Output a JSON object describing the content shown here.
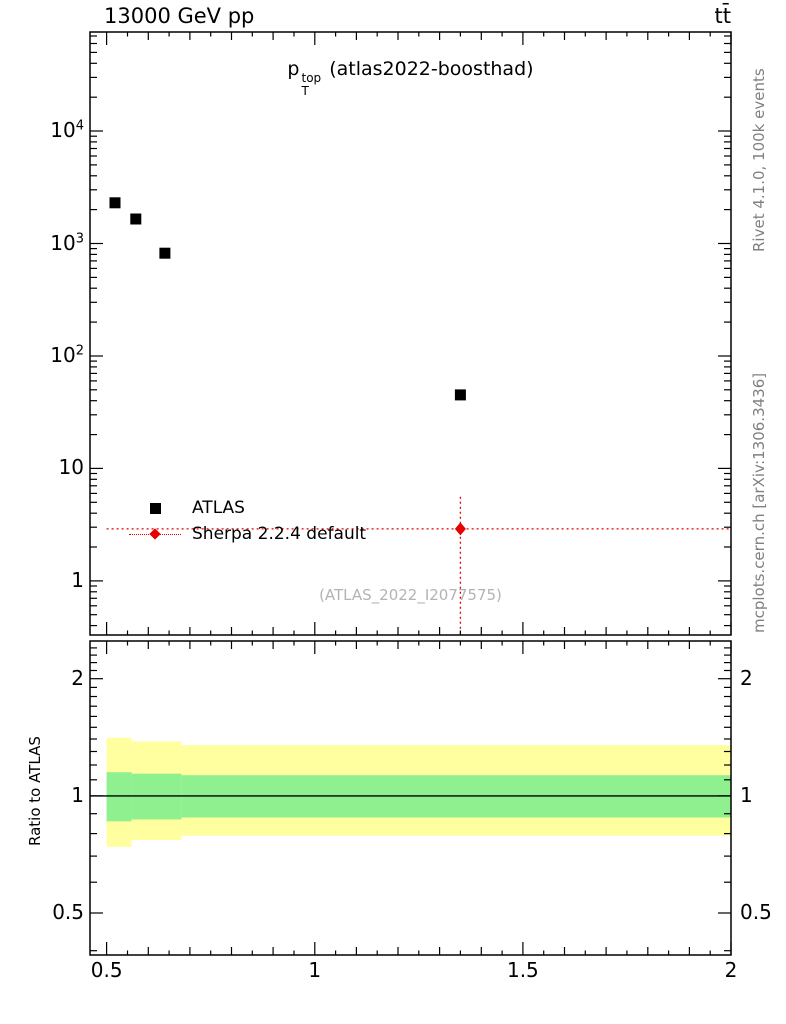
{
  "chart_data": {
    "type": "scatter",
    "title": {
      "p": "p",
      "sup": "top",
      "sub": "T",
      "rest": " (atlas2022-boosthad)"
    },
    "annotations": {
      "top_left": "13000 GeV pp",
      "top_right": "tt̄",
      "watermark": "(ATLAS_2022_I2077575)",
      "right_top": "Rivet 4.1.0, 100k events",
      "right_bottom": "mcplots.cern.ch [arXiv:1306.3436]"
    },
    "x_axis": {
      "min": 0.46,
      "max": 2.0,
      "scale": "linear",
      "major_ticks": [
        {
          "v": 0.5,
          "label": "0.5"
        },
        {
          "v": 1,
          "label": "1"
        },
        {
          "v": 1.5,
          "label": "1.5"
        },
        {
          "v": 2,
          "label": "2"
        }
      ],
      "minor_step": 0.05
    },
    "y_axis_main": {
      "min": 0.33,
      "max": 76000,
      "scale": "log",
      "major_ticks": [
        {
          "v": 1,
          "label": "1"
        },
        {
          "v": 10,
          "label": "10"
        },
        {
          "v": 100,
          "label": "10",
          "exp": "2"
        },
        {
          "v": 1000,
          "label": "10",
          "exp": "3"
        },
        {
          "v": 10000,
          "label": "10",
          "exp": "4"
        }
      ]
    },
    "y_axis_ratio": {
      "min": 0.39,
      "max": 2.5,
      "scale": "log",
      "label": "Ratio to ATLAS",
      "major_ticks": [
        {
          "v": 0.5,
          "label": "0.5"
        },
        {
          "v": 1,
          "label": "1"
        },
        {
          "v": 2,
          "label": "2"
        }
      ],
      "minor_ticks": [
        0.4,
        0.6,
        0.7,
        0.8,
        0.9,
        1.1,
        1.2,
        1.3,
        1.4,
        1.5,
        1.6,
        1.7,
        1.8,
        1.9,
        2.1,
        2.2,
        2.3,
        2.4
      ]
    },
    "series": [
      {
        "name": "ATLAS",
        "marker": "square",
        "color": "#000000",
        "points": [
          {
            "x": 0.52,
            "y": 2300
          },
          {
            "x": 0.57,
            "y": 1650
          },
          {
            "x": 0.64,
            "y": 820
          },
          {
            "x": 1.35,
            "y": 45
          }
        ]
      },
      {
        "name": "Sherpa 2.2.4 default",
        "marker": "diamond",
        "color": "#e60000",
        "line": "dotted",
        "points": [
          {
            "x": 1.35,
            "y": 2.9,
            "x_lo": 0.5,
            "x_hi": 2.0,
            "y_lo": 0.34,
            "y_hi": 5.6
          }
        ]
      }
    ],
    "ratio_line": 1.0,
    "ratio_bands": {
      "segments": [
        {
          "x0": 0.5,
          "x1": 0.56,
          "yellow": [
            0.74,
            1.41
          ],
          "green": [
            0.86,
            1.15
          ]
        },
        {
          "x0": 0.56,
          "x1": 0.68,
          "yellow": [
            0.77,
            1.38
          ],
          "green": [
            0.87,
            1.14
          ]
        },
        {
          "x0": 0.68,
          "x1": 2.0,
          "yellow": [
            0.79,
            1.35
          ],
          "green": [
            0.88,
            1.13
          ]
        }
      ]
    },
    "colors": {
      "data": "#000000",
      "mc": "#e60000",
      "band_outer": "#ffffa0",
      "band_inner": "#8ff08f",
      "gray_text": "#808080",
      "watermark": "#b3b3b3"
    }
  }
}
